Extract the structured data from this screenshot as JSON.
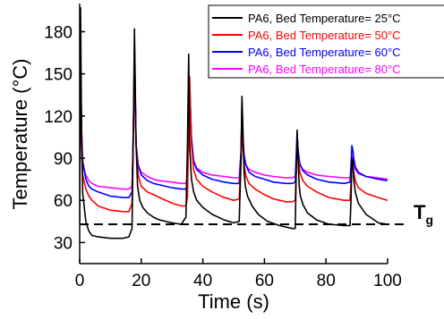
{
  "chart_data": {
    "type": "line",
    "xlabel": "Time (s)",
    "ylabel": "Temperature (°C)",
    "xlim": [
      0,
      100
    ],
    "ylim": [
      15,
      200
    ],
    "x_ticks": [
      0,
      20,
      40,
      60,
      80,
      100
    ],
    "y_ticks": [
      30,
      60,
      90,
      120,
      150,
      180
    ],
    "grid": false,
    "legend_position": "top-right",
    "reference_line": {
      "y": 43,
      "style": "dashed",
      "color": "#000000",
      "label": "T",
      "label_subscript": "g"
    },
    "series": [
      {
        "name": "PA6, Bed Temperature= 25°C",
        "color": "#000000",
        "x": [
          0,
          0.3,
          0.6,
          1,
          2,
          3,
          4,
          6,
          10,
          14,
          16,
          17,
          17.5,
          17.8,
          18.3,
          18.8,
          19.5,
          20.5,
          22,
          24,
          26,
          30,
          33,
          34.5,
          35,
          35.4,
          35.7,
          36.3,
          37,
          38,
          40,
          43,
          47,
          50,
          51.8,
          52.4,
          52.7,
          53,
          53.4,
          53.8,
          54.5,
          56,
          58,
          61,
          65,
          69,
          70,
          70.3,
          70.6,
          70.9,
          71.3,
          71.7,
          72.5,
          74,
          77,
          81,
          86,
          87.8,
          88.1,
          88.4,
          88.7,
          89,
          89.5,
          90.5,
          93,
          97,
          100
        ],
        "y": [
          45,
          197,
          110,
          65,
          45,
          38,
          35,
          34,
          33,
          33,
          34,
          40,
          120,
          182,
          100,
          70,
          60,
          55,
          51,
          48,
          46,
          44,
          43,
          48,
          100,
          164,
          100,
          75,
          66,
          60,
          55,
          50,
          46,
          44,
          45,
          90,
          134,
          112,
          80,
          70,
          63,
          56,
          50,
          45,
          42,
          40,
          40,
          75,
          110,
          90,
          70,
          63,
          57,
          51,
          46,
          43,
          42,
          42,
          60,
          90,
          88,
          75,
          66,
          58,
          50,
          44,
          43
        ]
      },
      {
        "name": "PA6, Bed Temperature= 50°C",
        "color": "#ff0000",
        "x": [
          0,
          0.3,
          0.6,
          1,
          2,
          3,
          4,
          6,
          10,
          14,
          16,
          17,
          17.5,
          17.8,
          18.3,
          19,
          20,
          22,
          24,
          26,
          30,
          33,
          34.5,
          35,
          35.4,
          35.7,
          36.3,
          37,
          38,
          40,
          43,
          47,
          50,
          51.8,
          52.4,
          52.7,
          53,
          53.4,
          54,
          55,
          57,
          60,
          63,
          67,
          69,
          70,
          70.3,
          70.6,
          71,
          71.5,
          72.5,
          74,
          77,
          81,
          86,
          87.8,
          88.1,
          88.4,
          88.7,
          89,
          89.5,
          90.5,
          93,
          97,
          100
        ],
        "y": [
          60,
          168,
          110,
          78,
          68,
          63,
          60,
          56,
          53,
          52,
          52,
          58,
          120,
          170,
          100,
          78,
          70,
          66,
          64,
          62,
          58,
          56,
          56,
          62,
          110,
          148,
          100,
          82,
          75,
          70,
          66,
          62,
          60,
          61,
          90,
          118,
          100,
          85,
          77,
          72,
          68,
          64,
          61,
          59,
          59,
          60,
          80,
          105,
          90,
          80,
          74,
          70,
          66,
          62,
          60,
          60,
          72,
          88,
          86,
          80,
          74,
          69,
          65,
          62,
          60
        ]
      },
      {
        "name": "PA6, Bed Temperature= 60°C",
        "color": "#0000ff",
        "x": [
          0,
          0.3,
          0.6,
          1,
          2,
          3,
          4,
          6,
          10,
          14,
          16,
          17,
          17.5,
          17.8,
          18.3,
          19,
          20,
          22,
          24,
          26,
          30,
          33,
          34.5,
          35,
          35.4,
          35.7,
          36.3,
          37,
          38,
          40,
          43,
          47,
          50,
          51.8,
          52.4,
          52.7,
          53,
          53.4,
          54,
          55,
          57,
          60,
          63,
          67,
          69,
          70,
          70.3,
          70.6,
          71,
          71.5,
          72.5,
          74,
          77,
          81,
          86,
          87.8,
          88.1,
          88.4,
          88.7,
          89,
          89.5,
          90.5,
          93,
          97,
          100
        ],
        "y": [
          75,
          165,
          110,
          88,
          75,
          70,
          68,
          66,
          63,
          62,
          62,
          66,
          120,
          168,
          100,
          85,
          78,
          74,
          72,
          71,
          69,
          68,
          68,
          72,
          115,
          145,
          105,
          88,
          82,
          78,
          75,
          73,
          72,
          72,
          95,
          130,
          105,
          92,
          85,
          80,
          77,
          75,
          73,
          72,
          72,
          73,
          90,
          108,
          95,
          86,
          81,
          78,
          75,
          73,
          72,
          73,
          85,
          99,
          96,
          90,
          84,
          80,
          77,
          75,
          74
        ]
      },
      {
        "name": "PA6, Bed Temperature= 80°C",
        "color": "#ff00ff",
        "x": [
          0,
          0.3,
          0.6,
          1,
          2,
          3,
          4,
          6,
          10,
          14,
          16,
          17,
          17.5,
          17.8,
          18.3,
          19,
          20,
          22,
          24,
          26,
          30,
          33,
          34.5,
          35,
          35.4,
          35.7,
          36.3,
          37,
          38,
          40,
          43,
          47,
          50,
          51.8,
          52.4,
          52.7,
          53,
          53.4,
          54,
          55,
          57,
          60,
          63,
          67,
          69,
          70,
          70.3,
          70.6,
          71,
          71.5,
          72.5,
          74,
          77,
          81,
          86,
          87.8,
          88.1,
          88.4,
          88.7,
          89,
          89.5,
          90.5,
          93,
          97,
          100
        ],
        "y": [
          80,
          150,
          100,
          85,
          78,
          74,
          72,
          70,
          69,
          68,
          68,
          70,
          110,
          150,
          100,
          85,
          80,
          77,
          75,
          74,
          73,
          72,
          72,
          75,
          110,
          140,
          100,
          88,
          83,
          80,
          78,
          77,
          76,
          76,
          95,
          125,
          100,
          90,
          85,
          82,
          80,
          78,
          77,
          76,
          76,
          77,
          88,
          100,
          92,
          85,
          82,
          80,
          78,
          77,
          76,
          76,
          82,
          92,
          90,
          86,
          82,
          79,
          77,
          76,
          75
        ]
      }
    ]
  }
}
